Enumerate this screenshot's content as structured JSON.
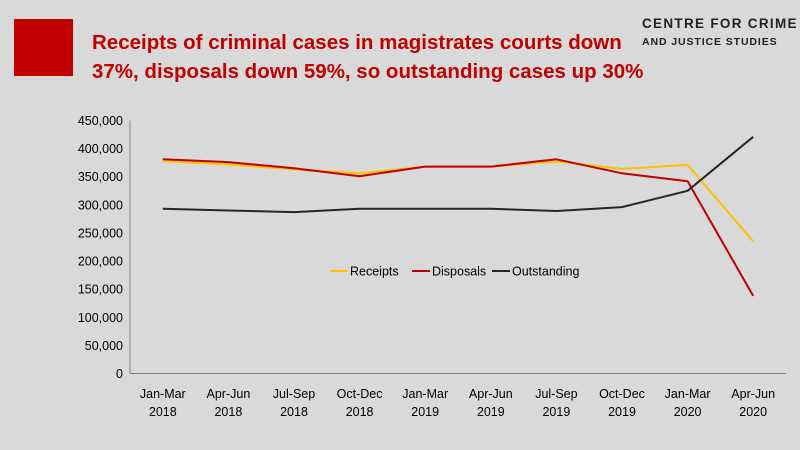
{
  "header": {
    "title_line1": "Receipts of criminal cases in magistrates courts down",
    "title_line2": "37%, disposals down 59%, so outstanding cases up 30%",
    "brand_line1": "Centre for Crime",
    "brand_line2": "and Justice Studies"
  },
  "colors": {
    "background": "#d9d9d9",
    "accent": "#c00000",
    "Receipts": "#ffc000",
    "Disposals": "#c00000",
    "Outstanding": "#262626"
  },
  "chart_data": {
    "type": "line",
    "title": "",
    "xlabel": "",
    "ylabel": "",
    "categories": [
      [
        "Jan-Mar",
        "2018"
      ],
      [
        "Apr-Jun",
        "2018"
      ],
      [
        "Jul-Sep",
        "2018"
      ],
      [
        "Oct-Dec",
        "2018"
      ],
      [
        "Jan-Mar",
        "2019"
      ],
      [
        "Apr-Jun",
        "2019"
      ],
      [
        "Jul-Sep",
        "2019"
      ],
      [
        "Oct-Dec",
        "2019"
      ],
      [
        "Jan-Mar",
        "2020"
      ],
      [
        "Apr-Jun",
        "2020"
      ]
    ],
    "ylim": [
      0,
      450000
    ],
    "yticks": [
      "0",
      "50,000",
      "100,000",
      "150,000",
      "200,000",
      "250,000",
      "300,000",
      "350,000",
      "400,000",
      "450,000"
    ],
    "grid": false,
    "legend": "inside-center",
    "series": [
      {
        "name": "Receipts",
        "values": [
          378000,
          372000,
          363000,
          356000,
          368000,
          368000,
          377000,
          364000,
          371000,
          235000
        ]
      },
      {
        "name": "Disposals",
        "values": [
          381000,
          376000,
          365000,
          351000,
          368000,
          368000,
          381000,
          356000,
          342000,
          138000
        ]
      },
      {
        "name": "Outstanding",
        "values": [
          293000,
          290000,
          287000,
          293000,
          293000,
          293000,
          289000,
          296000,
          325000,
          421000
        ]
      }
    ]
  }
}
